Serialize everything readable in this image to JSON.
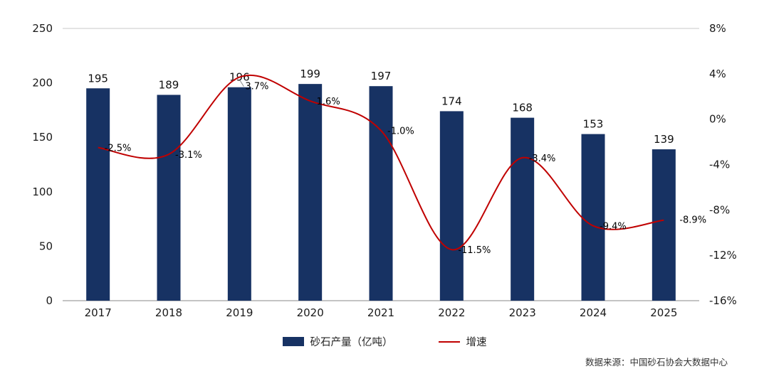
{
  "chart_data": {
    "type": "bar+line",
    "categories": [
      "2017",
      "2018",
      "2019",
      "2020",
      "2021",
      "2022",
      "2023",
      "2024",
      "2025"
    ],
    "series": [
      {
        "name": "砂石产量（亿吨）",
        "type": "bar",
        "axis": "left",
        "color": "#173263",
        "values": [
          195,
          189,
          196,
          199,
          197,
          174,
          168,
          153,
          139
        ],
        "labels": [
          "195",
          "189",
          "196",
          "199",
          "197",
          "174",
          "168",
          "153",
          "139"
        ]
      },
      {
        "name": "增速",
        "type": "line",
        "axis": "right",
        "color": "#c00000",
        "values": [
          -2.5,
          -3.1,
          3.7,
          1.6,
          -1.0,
          -11.5,
          -3.4,
          -9.4,
          -8.9
        ],
        "labels": [
          "-2.5%",
          "-3.1%",
          "3.7%",
          "1.6%",
          "-1.0%",
          "-11.5%",
          "-3.4%",
          "-9.4%",
          "-8.9%"
        ]
      }
    ],
    "left_axis": {
      "min": 0,
      "max": 250,
      "ticks": [
        "0",
        "50",
        "100",
        "150",
        "200",
        "250"
      ]
    },
    "right_axis": {
      "min": -16,
      "max": 8,
      "ticks": [
        "-16%",
        "-12%",
        "-8%",
        "-4%",
        "0%",
        "4%",
        "8%"
      ]
    },
    "title": "",
    "xlabel": "",
    "ylabel": "",
    "grid": false,
    "legend_position": "bottom"
  },
  "source_note": "数据来源：中国砂石协会大数据中心",
  "colors": {
    "bar": "#173263",
    "line": "#c00000",
    "axis_text": "#1a1a1a",
    "top_gridline": "#c8c8c8",
    "bottom_axis": "#8a8a8a"
  }
}
